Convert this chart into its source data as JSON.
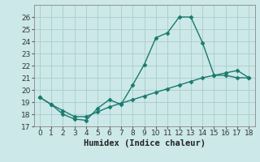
{
  "xlabel": "Humidex (Indice chaleur)",
  "line1_x": [
    0,
    1,
    2,
    3,
    4,
    5,
    6,
    7,
    8,
    9,
    10,
    11,
    12,
    13,
    14,
    15,
    16,
    17,
    18
  ],
  "line1_y": [
    19.4,
    18.8,
    18.0,
    17.6,
    17.5,
    18.5,
    19.2,
    18.8,
    20.4,
    22.1,
    24.3,
    24.7,
    26.0,
    26.0,
    23.9,
    21.2,
    21.2,
    21.0,
    21.0
  ],
  "line2_x": [
    0,
    1,
    2,
    3,
    4,
    5,
    6,
    7,
    8,
    9,
    10,
    11,
    12,
    13,
    14,
    15,
    16,
    17,
    18
  ],
  "line2_y": [
    19.4,
    18.8,
    18.3,
    17.8,
    17.8,
    18.2,
    18.6,
    18.9,
    19.2,
    19.5,
    19.8,
    20.1,
    20.4,
    20.7,
    21.0,
    21.2,
    21.4,
    21.6,
    21.0
  ],
  "line_color": "#1a7a6e",
  "bg_color": "#cce8e8",
  "grid_color": "#aacccc",
  "ylim": [
    17,
    27
  ],
  "xlim": [
    -0.5,
    18.5
  ],
  "yticks": [
    17,
    18,
    19,
    20,
    21,
    22,
    23,
    24,
    25,
    26
  ],
  "xticks": [
    0,
    1,
    2,
    3,
    4,
    5,
    6,
    7,
    8,
    9,
    10,
    11,
    12,
    13,
    14,
    15,
    16,
    17,
    18
  ],
  "marker": "D",
  "markersize": 2.5,
  "linewidth": 1.0,
  "tick_fontsize": 6.5,
  "xlabel_fontsize": 7.5
}
